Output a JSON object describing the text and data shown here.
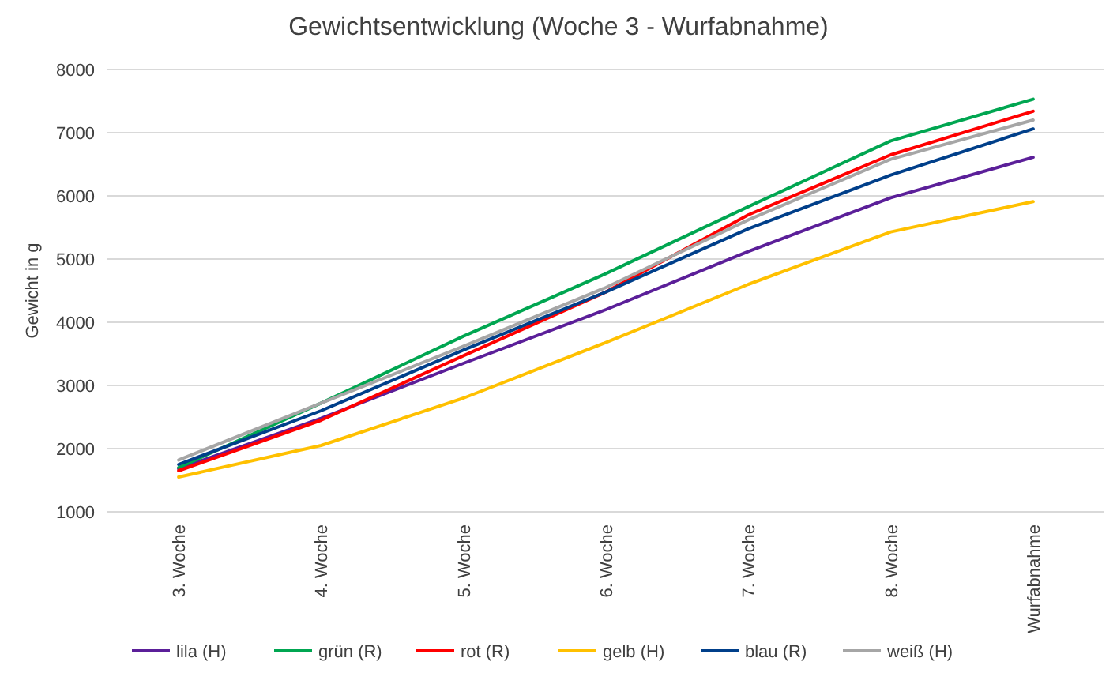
{
  "chart_data": {
    "type": "line",
    "title": "Gewichtsentwicklung (Woche 3 - Wurfabnahme)",
    "ylabel": "Gewicht in g",
    "categories": [
      "3. Woche",
      "4. Woche",
      "5. Woche",
      "6. Woche",
      "7. Woche",
      "8. Woche",
      "Wurfabnahme"
    ],
    "series": [
      {
        "name": "lila (H)",
        "color": "#5b1f99",
        "values": [
          1680,
          2480,
          3350,
          4200,
          5120,
          5970,
          6610
        ]
      },
      {
        "name": "grün (R)",
        "color": "#00a651",
        "values": [
          1700,
          2720,
          3780,
          4770,
          5830,
          6870,
          7530
        ]
      },
      {
        "name": "rot (R)",
        "color": "#ff0000",
        "values": [
          1650,
          2450,
          3470,
          4480,
          5700,
          6650,
          7340
        ]
      },
      {
        "name": "gelb (H)",
        "color": "#ffc000",
        "values": [
          1550,
          2050,
          2800,
          3680,
          4600,
          5430,
          5910
        ]
      },
      {
        "name": "blau (R)",
        "color": "#003f8a",
        "values": [
          1750,
          2600,
          3560,
          4480,
          5480,
          6330,
          7060
        ]
      },
      {
        "name": "weiß (H)",
        "color": "#a6a6a6",
        "values": [
          1820,
          2720,
          3620,
          4550,
          5620,
          6580,
          7200
        ]
      }
    ],
    "ylim": [
      1000,
      8000
    ],
    "yticks": [
      1000,
      2000,
      3000,
      4000,
      5000,
      6000,
      7000,
      8000
    ],
    "grid": "y",
    "legend": "bottom",
    "marker": "none",
    "line_style": "solid"
  }
}
